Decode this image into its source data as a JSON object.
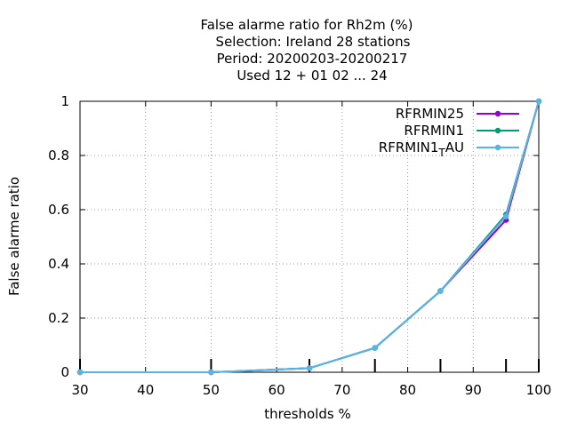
{
  "chart_data": {
    "type": "line",
    "title_lines": [
      "False alarme ratio  for Rh2m (%)",
      "Selection: Ireland     28 stations",
      "Period: 20200203-20200217",
      "Used  12 + 01 02 ... 24"
    ],
    "xlabel": "thresholds %",
    "ylabel": "False alarme ratio",
    "xlim": [
      30,
      100
    ],
    "ylim": [
      0,
      1
    ],
    "xticks": [
      30,
      40,
      50,
      60,
      70,
      80,
      90,
      100
    ],
    "yticks": [
      0,
      0.2,
      0.4,
      0.6,
      0.8,
      1
    ],
    "ytick_labels": [
      "0",
      "0.2",
      "0.4",
      "0.6",
      "0.8",
      "1"
    ],
    "xtick_labels": [
      "30",
      "40",
      "50",
      "60",
      "70",
      "80",
      "90",
      "100"
    ],
    "threshold_markers": [
      30,
      50,
      65,
      75,
      85,
      95,
      100
    ],
    "grid": true,
    "legend_position": "top-right",
    "series": [
      {
        "name": "RFRMIN25",
        "color": "#9400d3",
        "x": [
          30,
          50,
          65,
          75,
          85,
          95,
          100
        ],
        "y": [
          0,
          0,
          0.015,
          0.09,
          0.3,
          0.562,
          1.0
        ]
      },
      {
        "name": "RFRMIN1",
        "color": "#009e73",
        "x": [
          30,
          50,
          65,
          75,
          85,
          95,
          100
        ],
        "y": [
          0,
          0,
          0.015,
          0.09,
          0.3,
          0.582,
          1.0
        ]
      },
      {
        "name": "RFRMIN1_AU",
        "legend_main": "RFRMIN1",
        "legend_sub": "T",
        "legend_tail": "AU",
        "color": "#56b4e9",
        "x": [
          30,
          50,
          65,
          75,
          85,
          95,
          100
        ],
        "y": [
          0,
          0,
          0.015,
          0.09,
          0.3,
          0.575,
          1.0
        ]
      }
    ]
  }
}
